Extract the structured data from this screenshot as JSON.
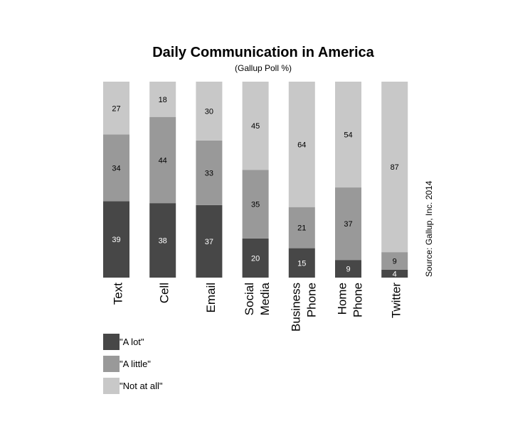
{
  "chart_data": {
    "type": "bar",
    "stacked": true,
    "title": "Daily Communication in America",
    "subtitle": "(Gallup Poll %)",
    "source": "Source: Gallup, Inc. 2014",
    "categories": [
      [
        "Text"
      ],
      [
        "Cell"
      ],
      [
        "Email"
      ],
      [
        "Social",
        "Media"
      ],
      [
        "Business",
        "Phone"
      ],
      [
        "Home",
        "Phone"
      ],
      [
        "Twitter"
      ]
    ],
    "series": [
      {
        "name": "\"A lot\"",
        "color": "#474747",
        "label_color": "#ffffff",
        "values": [
          39,
          38,
          37,
          20,
          15,
          9,
          4
        ]
      },
      {
        "name": "\"A little\"",
        "color": "#999999",
        "label_color": "#000000",
        "values": [
          34,
          44,
          33,
          35,
          21,
          37,
          9
        ]
      },
      {
        "name": "\"Not at all\"",
        "color": "#c8c8c8",
        "label_color": "#000000",
        "values": [
          27,
          18,
          30,
          45,
          64,
          54,
          87
        ]
      }
    ],
    "ylim": [
      0,
      100
    ],
    "grid": false,
    "legend_position": "bottom-left"
  }
}
